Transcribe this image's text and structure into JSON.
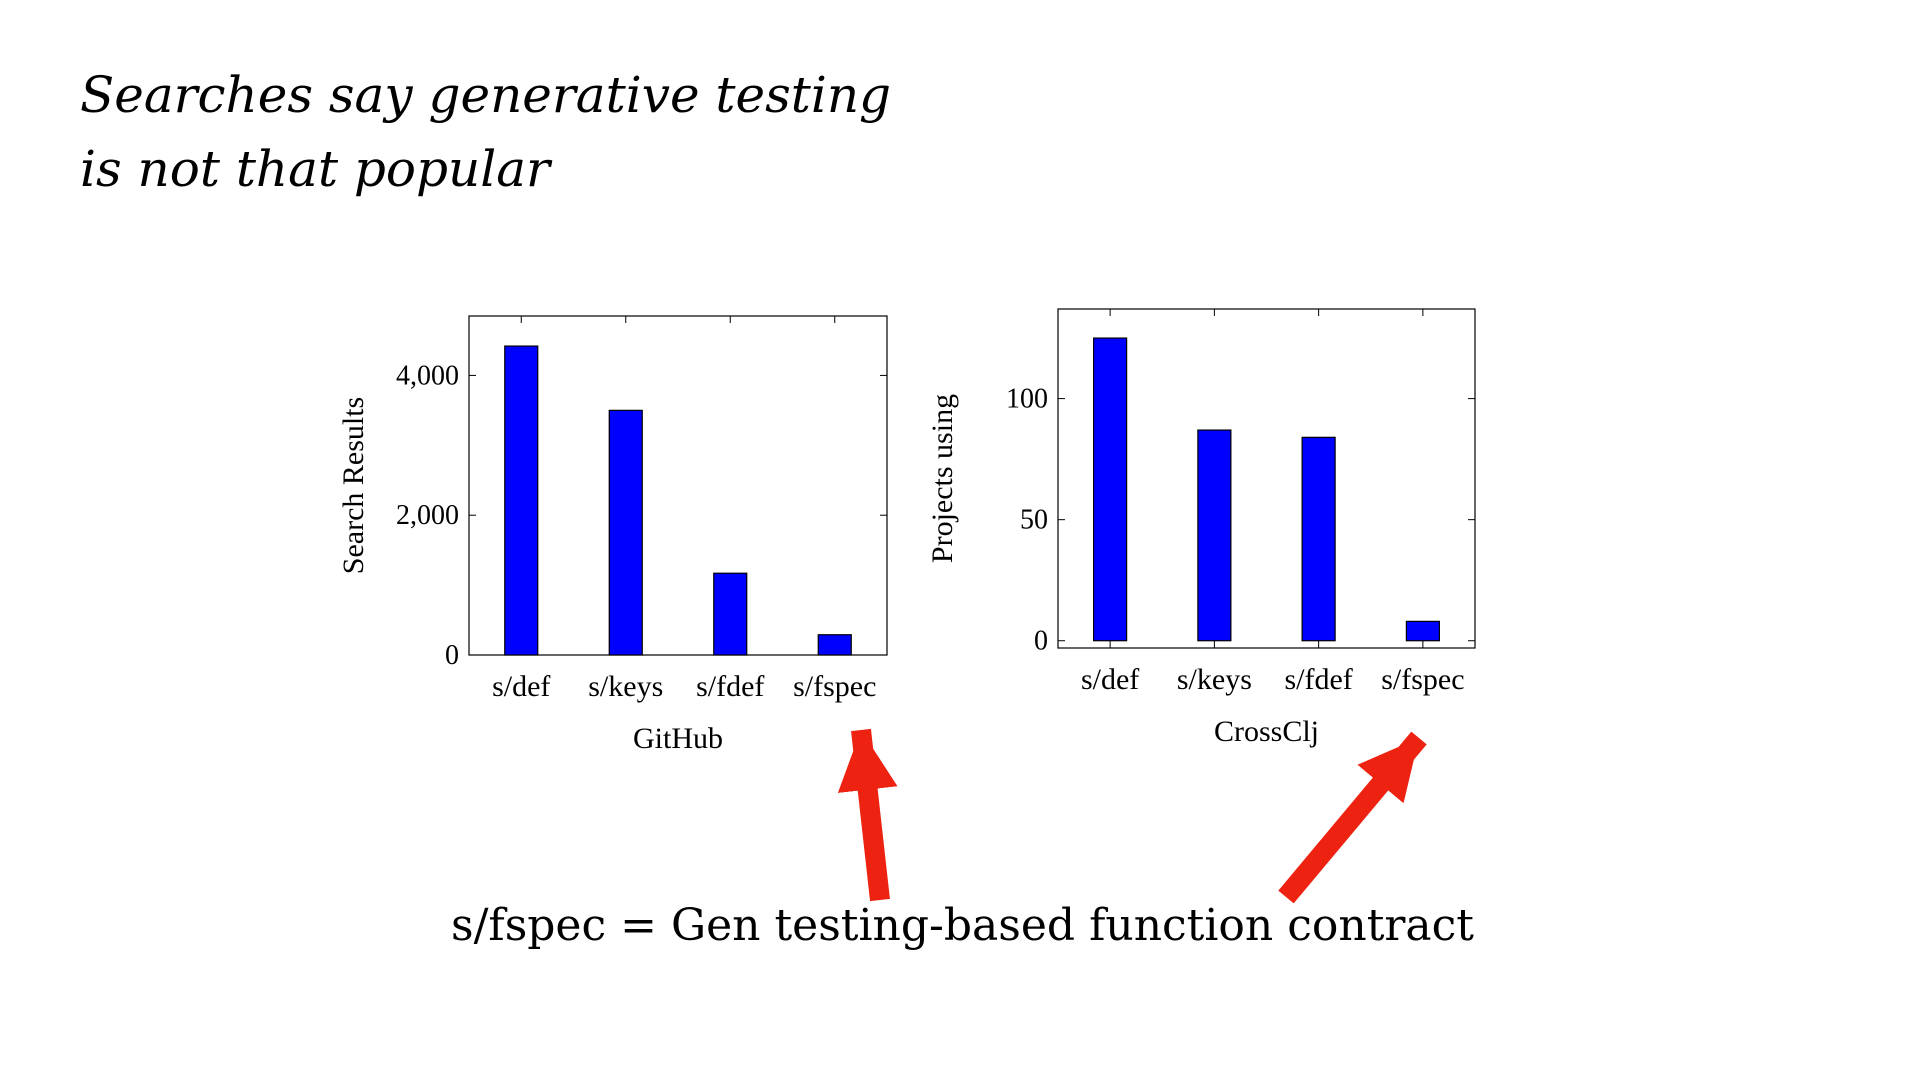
{
  "slide": {
    "title_lines": [
      "Searches say generative testing",
      "is not that popular"
    ],
    "caption": "s/fspec = Gen testing-based function contract"
  },
  "colors": {
    "bar": "#0000ff",
    "arrow": "#ee2211"
  },
  "chart_data": [
    {
      "type": "bar",
      "categories": [
        "s/def",
        "s/keys",
        "s/fdef",
        "s/fspec"
      ],
      "values": [
        4420,
        3500,
        1170,
        290
      ],
      "title": "",
      "xlabel": "GitHub",
      "ylabel": "Search Results",
      "ylim": [
        0,
        4850
      ],
      "yticks": [
        0,
        2000,
        4000
      ],
      "ytick_labels": [
        "0",
        "2,000",
        "4,000"
      ],
      "grid": false
    },
    {
      "type": "bar",
      "categories": [
        "s/def",
        "s/keys",
        "s/fdef",
        "s/fspec"
      ],
      "values": [
        125,
        87,
        84,
        8
      ],
      "title": "",
      "xlabel": "CrossClj",
      "ylabel": "Projects using",
      "ylim": [
        -3,
        137
      ],
      "yticks": [
        0,
        50,
        100
      ],
      "ytick_labels": [
        "0",
        "50",
        "100"
      ],
      "grid": false
    }
  ]
}
